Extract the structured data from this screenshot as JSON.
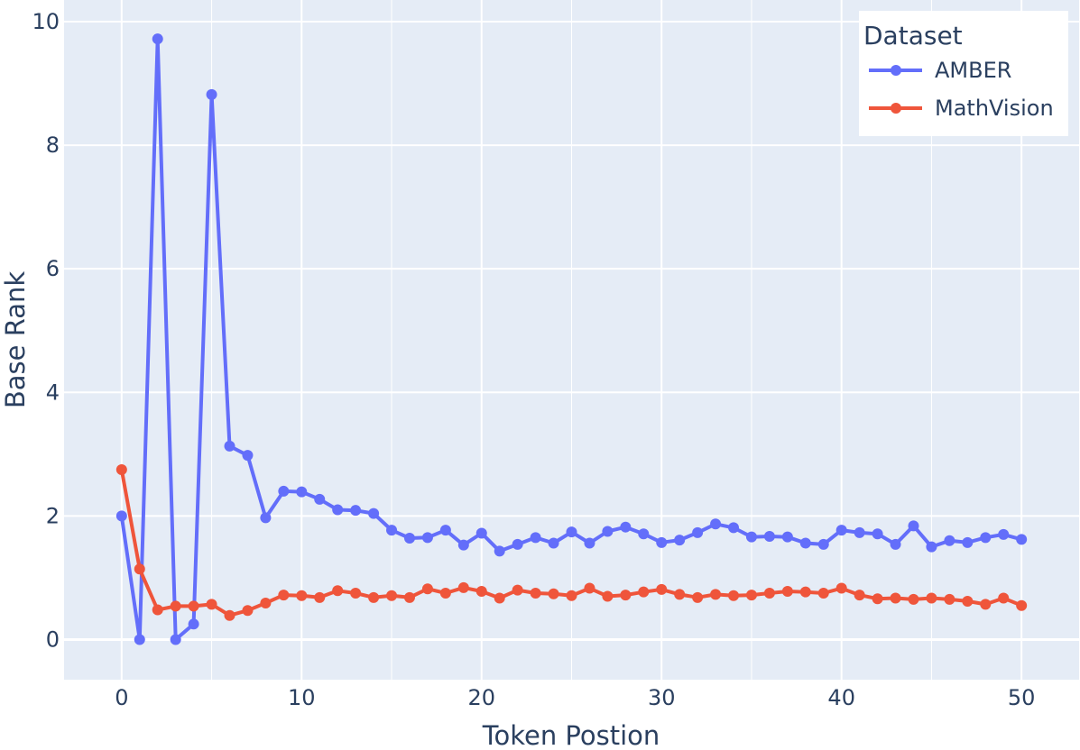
{
  "chart_data": {
    "type": "line",
    "xlabel": "Token Postion",
    "ylabel": "Base Rank",
    "xlim": [
      -3.2,
      53.2
    ],
    "ylim": [
      -0.65,
      10.35
    ],
    "xticks": [
      0,
      10,
      20,
      30,
      40,
      50
    ],
    "yticks": [
      0,
      2,
      4,
      6,
      8,
      10
    ],
    "x_minor_gridlines": [
      5,
      15,
      25,
      35,
      45
    ],
    "grid": true,
    "legend": {
      "title": "Dataset",
      "position": "top-right"
    },
    "x": [
      0,
      1,
      2,
      3,
      4,
      5,
      6,
      7,
      8,
      9,
      10,
      11,
      12,
      13,
      14,
      15,
      16,
      17,
      18,
      19,
      20,
      21,
      22,
      23,
      24,
      25,
      26,
      27,
      28,
      29,
      30,
      31,
      32,
      33,
      34,
      35,
      36,
      37,
      38,
      39,
      40,
      41,
      42,
      43,
      44,
      45,
      46,
      47,
      48,
      49,
      50
    ],
    "series": [
      {
        "name": "AMBER",
        "color": "#636efa",
        "values": [
          2.0,
          0.0,
          9.72,
          0.0,
          0.25,
          8.82,
          3.13,
          2.98,
          1.97,
          2.4,
          2.39,
          2.27,
          2.1,
          2.09,
          2.04,
          1.77,
          1.64,
          1.65,
          1.77,
          1.53,
          1.72,
          1.43,
          1.54,
          1.65,
          1.56,
          1.74,
          1.56,
          1.75,
          1.82,
          1.71,
          1.57,
          1.61,
          1.73,
          1.87,
          1.81,
          1.66,
          1.67,
          1.66,
          1.56,
          1.54,
          1.77,
          1.73,
          1.71,
          1.54,
          1.84,
          1.5,
          1.6,
          1.57,
          1.65,
          1.7,
          1.62
        ]
      },
      {
        "name": "MathVision",
        "color": "#ef553b",
        "values": [
          2.75,
          1.14,
          0.48,
          0.54,
          0.54,
          0.57,
          0.39,
          0.47,
          0.59,
          0.72,
          0.71,
          0.68,
          0.79,
          0.75,
          0.68,
          0.71,
          0.68,
          0.82,
          0.75,
          0.84,
          0.78,
          0.67,
          0.8,
          0.75,
          0.74,
          0.71,
          0.83,
          0.7,
          0.72,
          0.77,
          0.81,
          0.73,
          0.68,
          0.73,
          0.71,
          0.72,
          0.75,
          0.78,
          0.77,
          0.75,
          0.83,
          0.72,
          0.66,
          0.67,
          0.65,
          0.67,
          0.65,
          0.62,
          0.57,
          0.67,
          0.55
        ]
      }
    ]
  }
}
